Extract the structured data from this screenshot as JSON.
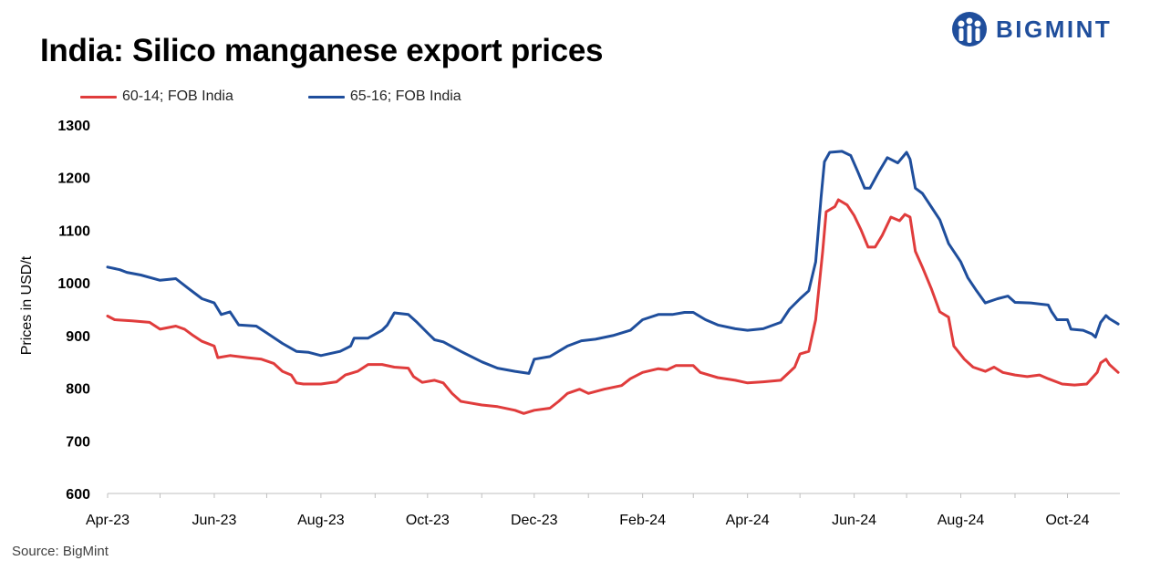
{
  "header": {
    "title": "India: Silico manganese export prices"
  },
  "logo": {
    "text": "BIGMINT",
    "icon": "bigmint-logo-icon",
    "color": "#1f4e9c"
  },
  "source": "Source: BigMint",
  "chart_data": {
    "type": "line",
    "title": "India: Silico manganese export prices",
    "xlabel": "",
    "ylabel": "Prices in USD/t",
    "ylim": [
      600,
      1300
    ],
    "yticks": [
      600,
      700,
      800,
      900,
      1000,
      1100,
      1200,
      1300
    ],
    "ytick_labels": [
      "600",
      "700",
      "800",
      "900",
      "1000",
      "1100",
      "1200",
      "1300"
    ],
    "xlim": [
      "2023-04-01",
      "2024-10-31"
    ],
    "xticks": [
      "2023-04-01",
      "2023-06-01",
      "2023-08-01",
      "2023-10-01",
      "2023-12-01",
      "2024-02-01",
      "2024-04-01",
      "2024-06-01",
      "2024-08-01",
      "2024-10-01"
    ],
    "xtick_labels": [
      "Apr-23",
      "Jun-23",
      "Aug-23",
      "Oct-23",
      "Dec-23",
      "Feb-24",
      "Apr-24",
      "Jun-24",
      "Aug-24",
      "Oct-24"
    ],
    "grid": false,
    "legend_position": "top-left",
    "series": [
      {
        "name": "60-14; FOB India",
        "color": "#e03c3c",
        "points": [
          [
            "2023-04-01",
            937
          ],
          [
            "2023-04-05",
            930
          ],
          [
            "2023-04-15",
            928
          ],
          [
            "2023-04-25",
            925
          ],
          [
            "2023-05-01",
            912
          ],
          [
            "2023-05-10",
            918
          ],
          [
            "2023-05-15",
            912
          ],
          [
            "2023-05-20",
            900
          ],
          [
            "2023-05-25",
            889
          ],
          [
            "2023-06-01",
            880
          ],
          [
            "2023-06-03",
            858
          ],
          [
            "2023-06-10",
            862
          ],
          [
            "2023-06-20",
            858
          ],
          [
            "2023-06-28",
            855
          ],
          [
            "2023-07-05",
            847
          ],
          [
            "2023-07-10",
            832
          ],
          [
            "2023-07-15",
            825
          ],
          [
            "2023-07-18",
            810
          ],
          [
            "2023-07-22",
            808
          ],
          [
            "2023-08-01",
            808
          ],
          [
            "2023-08-10",
            812
          ],
          [
            "2023-08-15",
            825
          ],
          [
            "2023-08-22",
            832
          ],
          [
            "2023-08-28",
            845
          ],
          [
            "2023-09-05",
            845
          ],
          [
            "2023-09-12",
            840
          ],
          [
            "2023-09-20",
            838
          ],
          [
            "2023-09-23",
            822
          ],
          [
            "2023-09-28",
            811
          ],
          [
            "2023-10-05",
            815
          ],
          [
            "2023-10-10",
            810
          ],
          [
            "2023-10-15",
            790
          ],
          [
            "2023-10-20",
            775
          ],
          [
            "2023-11-01",
            768
          ],
          [
            "2023-11-10",
            765
          ],
          [
            "2023-11-20",
            758
          ],
          [
            "2023-11-25",
            752
          ],
          [
            "2023-12-01",
            758
          ],
          [
            "2023-12-10",
            762
          ],
          [
            "2023-12-15",
            775
          ],
          [
            "2023-12-20",
            790
          ],
          [
            "2023-12-27",
            798
          ],
          [
            "2024-01-01",
            790
          ],
          [
            "2024-01-10",
            798
          ],
          [
            "2024-01-20",
            805
          ],
          [
            "2024-01-25",
            818
          ],
          [
            "2024-02-01",
            830
          ],
          [
            "2024-02-10",
            837
          ],
          [
            "2024-02-15",
            835
          ],
          [
            "2024-02-20",
            843
          ],
          [
            "2024-03-01",
            843
          ],
          [
            "2024-03-05",
            830
          ],
          [
            "2024-03-15",
            820
          ],
          [
            "2024-03-25",
            815
          ],
          [
            "2024-04-01",
            810
          ],
          [
            "2024-04-10",
            812
          ],
          [
            "2024-04-20",
            815
          ],
          [
            "2024-04-28",
            840
          ],
          [
            "2024-05-01",
            865
          ],
          [
            "2024-05-06",
            870
          ],
          [
            "2024-05-10",
            930
          ],
          [
            "2024-05-14",
            1060
          ],
          [
            "2024-05-16",
            1135
          ],
          [
            "2024-05-21",
            1145
          ],
          [
            "2024-05-23",
            1158
          ],
          [
            "2024-05-28",
            1148
          ],
          [
            "2024-06-01",
            1128
          ],
          [
            "2024-06-05",
            1100
          ],
          [
            "2024-06-09",
            1068
          ],
          [
            "2024-06-13",
            1068
          ],
          [
            "2024-06-17",
            1090
          ],
          [
            "2024-06-22",
            1125
          ],
          [
            "2024-06-27",
            1118
          ],
          [
            "2024-06-30",
            1130
          ],
          [
            "2024-07-03",
            1125
          ],
          [
            "2024-07-06",
            1060
          ],
          [
            "2024-07-10",
            1030
          ],
          [
            "2024-07-15",
            990
          ],
          [
            "2024-07-20",
            945
          ],
          [
            "2024-07-25",
            935
          ],
          [
            "2024-07-28",
            880
          ],
          [
            "2024-08-03",
            855
          ],
          [
            "2024-08-08",
            840
          ],
          [
            "2024-08-15",
            832
          ],
          [
            "2024-08-20",
            840
          ],
          [
            "2024-08-25",
            830
          ],
          [
            "2024-09-01",
            825
          ],
          [
            "2024-09-08",
            822
          ],
          [
            "2024-09-15",
            825
          ],
          [
            "2024-09-20",
            818
          ],
          [
            "2024-09-28",
            808
          ],
          [
            "2024-10-05",
            806
          ],
          [
            "2024-10-12",
            808
          ],
          [
            "2024-10-18",
            830
          ],
          [
            "2024-10-20",
            848
          ],
          [
            "2024-10-23",
            855
          ],
          [
            "2024-10-25",
            845
          ],
          [
            "2024-10-30",
            830
          ]
        ]
      },
      {
        "name": "65-16; FOB India",
        "color": "#1f4e9c",
        "points": [
          [
            "2023-04-01",
            1030
          ],
          [
            "2023-04-08",
            1025
          ],
          [
            "2023-04-12",
            1020
          ],
          [
            "2023-04-20",
            1015
          ],
          [
            "2023-05-01",
            1005
          ],
          [
            "2023-05-10",
            1008
          ],
          [
            "2023-05-17",
            990
          ],
          [
            "2023-05-25",
            970
          ],
          [
            "2023-06-01",
            962
          ],
          [
            "2023-06-05",
            940
          ],
          [
            "2023-06-10",
            945
          ],
          [
            "2023-06-15",
            920
          ],
          [
            "2023-06-25",
            918
          ],
          [
            "2023-07-01",
            905
          ],
          [
            "2023-07-10",
            885
          ],
          [
            "2023-07-18",
            870
          ],
          [
            "2023-07-25",
            868
          ],
          [
            "2023-08-01",
            862
          ],
          [
            "2023-08-12",
            870
          ],
          [
            "2023-08-18",
            880
          ],
          [
            "2023-08-20",
            895
          ],
          [
            "2023-08-28",
            895
          ],
          [
            "2023-09-05",
            910
          ],
          [
            "2023-09-08",
            920
          ],
          [
            "2023-09-12",
            943
          ],
          [
            "2023-09-20",
            940
          ],
          [
            "2023-09-25",
            925
          ],
          [
            "2023-10-01",
            905
          ],
          [
            "2023-10-05",
            892
          ],
          [
            "2023-10-10",
            888
          ],
          [
            "2023-10-20",
            870
          ],
          [
            "2023-11-01",
            850
          ],
          [
            "2023-11-10",
            838
          ],
          [
            "2023-11-20",
            832
          ],
          [
            "2023-11-28",
            828
          ],
          [
            "2023-12-01",
            855
          ],
          [
            "2023-12-10",
            860
          ],
          [
            "2023-12-20",
            880
          ],
          [
            "2023-12-28",
            890
          ],
          [
            "2024-01-05",
            893
          ],
          [
            "2024-01-15",
            900
          ],
          [
            "2024-01-25",
            910
          ],
          [
            "2024-02-01",
            930
          ],
          [
            "2024-02-10",
            940
          ],
          [
            "2024-02-18",
            940
          ],
          [
            "2024-02-25",
            944
          ],
          [
            "2024-03-01",
            944
          ],
          [
            "2024-03-08",
            930
          ],
          [
            "2024-03-15",
            920
          ],
          [
            "2024-03-25",
            913
          ],
          [
            "2024-04-01",
            910
          ],
          [
            "2024-04-10",
            913
          ],
          [
            "2024-04-20",
            925
          ],
          [
            "2024-04-25",
            950
          ],
          [
            "2024-05-01",
            970
          ],
          [
            "2024-05-06",
            985
          ],
          [
            "2024-05-10",
            1040
          ],
          [
            "2024-05-13",
            1160
          ],
          [
            "2024-05-15",
            1230
          ],
          [
            "2024-05-18",
            1248
          ],
          [
            "2024-05-25",
            1250
          ],
          [
            "2024-05-30",
            1242
          ],
          [
            "2024-06-03",
            1212
          ],
          [
            "2024-06-07",
            1180
          ],
          [
            "2024-06-10",
            1180
          ],
          [
            "2024-06-15",
            1210
          ],
          [
            "2024-06-20",
            1238
          ],
          [
            "2024-06-26",
            1228
          ],
          [
            "2024-07-01",
            1248
          ],
          [
            "2024-07-03",
            1235
          ],
          [
            "2024-07-06",
            1180
          ],
          [
            "2024-07-10",
            1170
          ],
          [
            "2024-07-15",
            1145
          ],
          [
            "2024-07-20",
            1120
          ],
          [
            "2024-07-25",
            1075
          ],
          [
            "2024-08-01",
            1040
          ],
          [
            "2024-08-05",
            1010
          ],
          [
            "2024-08-10",
            985
          ],
          [
            "2024-08-15",
            962
          ],
          [
            "2024-08-22",
            970
          ],
          [
            "2024-08-28",
            975
          ],
          [
            "2024-09-01",
            963
          ],
          [
            "2024-09-10",
            962
          ],
          [
            "2024-09-20",
            958
          ],
          [
            "2024-09-22",
            945
          ],
          [
            "2024-09-25",
            930
          ],
          [
            "2024-10-01",
            930
          ],
          [
            "2024-10-03",
            912
          ],
          [
            "2024-10-10",
            910
          ],
          [
            "2024-10-15",
            903
          ],
          [
            "2024-10-17",
            897
          ],
          [
            "2024-10-20",
            925
          ],
          [
            "2024-10-23",
            938
          ],
          [
            "2024-10-25",
            932
          ],
          [
            "2024-10-30",
            922
          ]
        ]
      }
    ]
  }
}
